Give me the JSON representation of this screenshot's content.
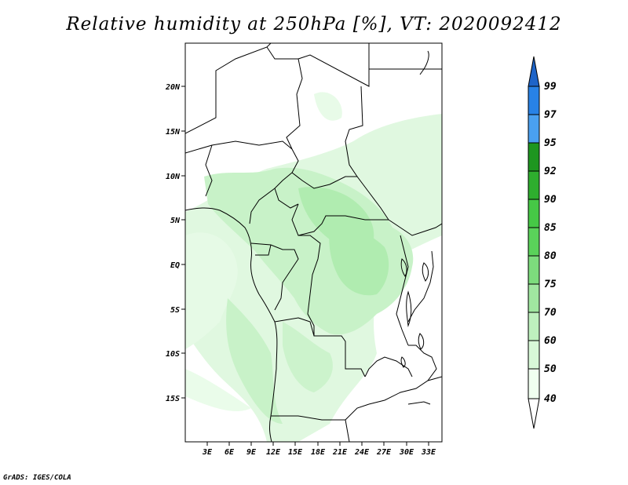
{
  "title": "Relative humidity at 250hPa [%], VT: 2020092412",
  "credit": "GrADS: IGES/COLA",
  "map": {
    "lat_labels": [
      "20N",
      "15N",
      "10N",
      "5N",
      "EQ",
      "5S",
      "10S",
      "15S"
    ],
    "lon_labels": [
      "3E",
      "6E",
      "9E",
      "12E",
      "15E",
      "18E",
      "21E",
      "24E",
      "27E",
      "30E",
      "33E"
    ]
  },
  "colorbar": {
    "levels": [
      "99",
      "97",
      "95",
      "92",
      "90",
      "85",
      "80",
      "75",
      "70",
      "60",
      "50",
      "40"
    ],
    "colors": [
      "#1e64c8",
      "#2882e6",
      "#4aa0f0",
      "#1e9620",
      "#2eae2e",
      "#46c846",
      "#5ad25a",
      "#7ddc7d",
      "#a0e6a0",
      "#bef0be",
      "#d8f8d8",
      "#f0fff0"
    ]
  }
}
